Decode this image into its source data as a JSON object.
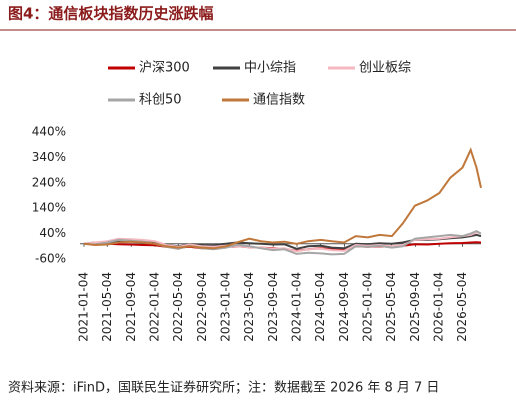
{
  "chart_data": {
    "type": "line",
    "title": "图4：通信板块指数历史涨跌幅",
    "source": "资料来源：iFinD，国联民生证券研究所；注：数据截至 2026 年 8 月 7 日",
    "x": [
      "2021-01-04",
      "2021-03-01",
      "2021-05-04",
      "2021-07-01",
      "2021-09-01",
      "2021-11-01",
      "2022-01-04",
      "2022-03-01",
      "2022-05-04",
      "2022-07-01",
      "2022-09-01",
      "2022-11-01",
      "2023-01-04",
      "2023-03-01",
      "2023-05-04",
      "2023-07-03",
      "2023-09-01",
      "2023-11-01",
      "2024-01-02",
      "2024-03-01",
      "2024-05-06",
      "2024-07-01",
      "2024-09-02",
      "2024-11-01",
      "2025-01-02",
      "2025-03-03",
      "2025-05-06",
      "2025-07-01",
      "2025-09-01",
      "2025-11-03",
      "2026-01-05",
      "2026-03-02",
      "2026-05-04",
      "2026-06-15",
      "2026-07-15",
      "2026-08-07"
    ],
    "xlim": [
      "2021-01-04",
      "2026-08-07"
    ],
    "xticks": [
      "2021-01-04",
      "2021-05-04",
      "2021-09-04",
      "2022-01-04",
      "2022-05-04",
      "2022-09-04",
      "2023-01-04",
      "2023-05-04",
      "2023-09-04",
      "2024-01-04",
      "2024-05-04",
      "2024-09-04",
      "2025-01-04",
      "2025-05-04",
      "2025-09-04",
      "2026-01-04",
      "2026-05-04"
    ],
    "ylim": [
      -60,
      440
    ],
    "yticks": [
      {
        "value": -60,
        "label": "-60%"
      },
      {
        "value": 40,
        "label": "40%"
      },
      {
        "value": 140,
        "label": "140%"
      },
      {
        "value": 240,
        "label": "240%"
      },
      {
        "value": 340,
        "label": "340%"
      },
      {
        "value": 440,
        "label": "440%"
      }
    ],
    "series": [
      {
        "name": "沪深300",
        "color": "#c00000",
        "values": [
          0,
          2,
          0,
          -2,
          -3,
          -5,
          -6,
          -12,
          -15,
          -12,
          -18,
          -20,
          -12,
          -10,
          -14,
          -15,
          -18,
          -20,
          -28,
          -22,
          -18,
          -22,
          -25,
          -10,
          -12,
          -10,
          -12,
          -8,
          -2,
          -3,
          0,
          2,
          3,
          5,
          6,
          5
        ]
      },
      {
        "name": "中小综指",
        "color": "#404040",
        "values": [
          0,
          5,
          4,
          8,
          12,
          10,
          8,
          -5,
          -10,
          -2,
          -5,
          -6,
          0,
          5,
          2,
          0,
          -3,
          -2,
          -20,
          -10,
          -8,
          -15,
          -18,
          0,
          -2,
          2,
          0,
          5,
          15,
          15,
          18,
          22,
          25,
          30,
          35,
          30
        ]
      },
      {
        "name": "创业板综",
        "color": "#f4b8c0",
        "values": [
          0,
          5,
          10,
          20,
          18,
          15,
          10,
          -5,
          -12,
          -3,
          -10,
          -12,
          -8,
          -10,
          -14,
          -15,
          -20,
          -18,
          -30,
          -22,
          -20,
          -25,
          -28,
          -5,
          -8,
          -5,
          -10,
          -5,
          15,
          18,
          20,
          25,
          30,
          35,
          45,
          40
        ]
      },
      {
        "name": "科创50",
        "color": "#a6a6a6",
        "values": [
          0,
          -3,
          5,
          15,
          12,
          8,
          0,
          -12,
          -20,
          -8,
          -18,
          -22,
          -15,
          -5,
          -10,
          -18,
          -25,
          -22,
          -40,
          -35,
          -38,
          -42,
          -40,
          -10,
          -12,
          -8,
          -15,
          -10,
          20,
          25,
          30,
          35,
          30,
          40,
          50,
          40
        ]
      },
      {
        "name": "通信指数",
        "color": "#c0773a",
        "values": [
          0,
          -5,
          -3,
          5,
          8,
          5,
          0,
          -10,
          -15,
          -10,
          -15,
          -18,
          -10,
          5,
          20,
          10,
          5,
          8,
          0,
          10,
          15,
          10,
          5,
          30,
          25,
          35,
          30,
          80,
          150,
          170,
          200,
          260,
          300,
          370,
          300,
          220
        ]
      }
    ]
  }
}
